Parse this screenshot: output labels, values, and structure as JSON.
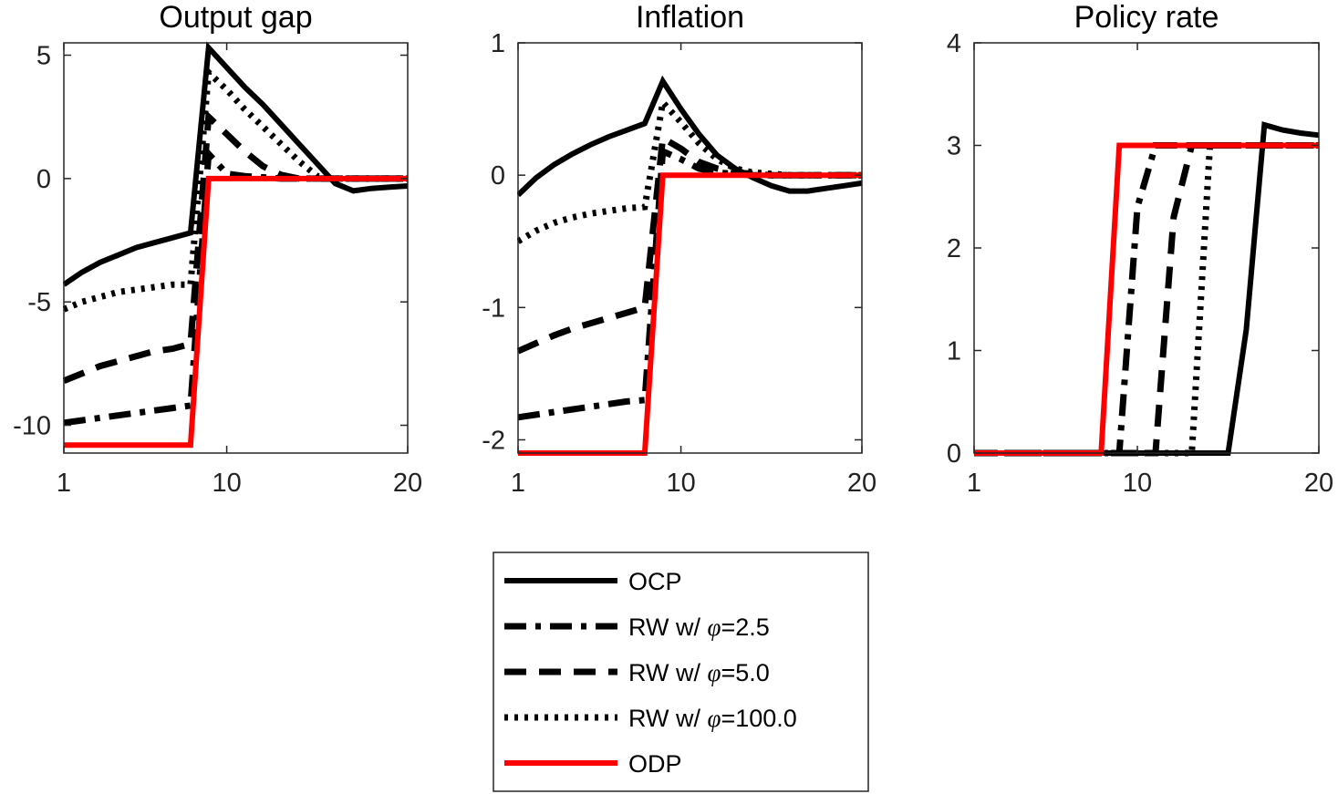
{
  "chart_data": [
    {
      "type": "line",
      "title": "Output gap",
      "xlabel": "",
      "ylabel": "",
      "xlim": [
        1,
        20
      ],
      "ylim": [
        -10.8,
        5.5
      ],
      "xticks": [
        "1",
        "10",
        "20"
      ],
      "yticks": [
        "5",
        "0",
        "-5",
        "-10"
      ],
      "grid": false,
      "x": [
        1,
        2,
        3,
        4,
        5,
        6,
        7,
        8,
        9,
        10,
        11,
        12,
        13,
        14,
        15,
        16,
        17,
        18,
        19,
        20
      ],
      "series": [
        {
          "name": "OCP",
          "values": [
            -4.3,
            -3.8,
            -3.4,
            -3.1,
            -2.8,
            -2.6,
            -2.4,
            -2.2,
            5.3,
            4.5,
            3.7,
            3.0,
            2.2,
            1.4,
            0.6,
            -0.2,
            -0.5,
            -0.4,
            -0.35,
            -0.3
          ]
        },
        {
          "name": "RW w/ φ=2.5",
          "values": [
            -9.9,
            -9.8,
            -9.7,
            -9.6,
            -9.5,
            -9.4,
            -9.3,
            -9.2,
            1.0,
            0.2,
            0.1,
            0.05,
            0.0,
            0.0,
            0.0,
            0.0,
            0.0,
            0.0,
            0.0,
            0.0
          ]
        },
        {
          "name": "RW w/ φ=5.0",
          "values": [
            -8.2,
            -7.9,
            -7.6,
            -7.4,
            -7.2,
            -7.0,
            -6.9,
            -6.7,
            2.5,
            1.8,
            1.1,
            0.5,
            0.15,
            0.0,
            0.0,
            0.0,
            0.0,
            0.0,
            0.0,
            0.0
          ]
        },
        {
          "name": "RW w/ φ=100.0",
          "values": [
            -5.3,
            -5.0,
            -4.8,
            -4.6,
            -4.5,
            -4.4,
            -4.3,
            -4.3,
            4.3,
            3.6,
            2.8,
            2.1,
            1.4,
            0.7,
            0.1,
            0.0,
            0.0,
            0.0,
            0.0,
            0.0
          ]
        },
        {
          "name": "ODP",
          "values": [
            -10.8,
            -10.8,
            -10.8,
            -10.8,
            -10.8,
            -10.8,
            -10.8,
            -10.8,
            0,
            0,
            0,
            0,
            0,
            0,
            0,
            0,
            0,
            0,
            0,
            0
          ]
        }
      ]
    },
    {
      "type": "line",
      "title": "Inflation",
      "xlabel": "",
      "ylabel": "",
      "xlim": [
        1,
        20
      ],
      "ylim": [
        -2.1,
        1
      ],
      "xticks": [
        "1",
        "10",
        "20"
      ],
      "yticks": [
        "1",
        "0",
        "-1",
        "-2"
      ],
      "grid": false,
      "x": [
        1,
        2,
        3,
        4,
        5,
        6,
        7,
        8,
        9,
        10,
        11,
        12,
        13,
        14,
        15,
        16,
        17,
        18,
        19,
        20
      ],
      "series": [
        {
          "name": "OCP",
          "values": [
            -0.15,
            -0.02,
            0.08,
            0.16,
            0.23,
            0.29,
            0.34,
            0.39,
            0.71,
            0.5,
            0.31,
            0.15,
            0.05,
            -0.02,
            -0.08,
            -0.12,
            -0.12,
            -0.1,
            -0.08,
            -0.06
          ]
        },
        {
          "name": "RW w/ φ=2.5",
          "values": [
            -1.83,
            -1.81,
            -1.79,
            -1.77,
            -1.75,
            -1.73,
            -1.71,
            -1.7,
            0.18,
            0.12,
            0.05,
            0.02,
            0.01,
            0.0,
            0.0,
            0.0,
            0.0,
            0.0,
            0.0,
            0.0
          ]
        },
        {
          "name": "RW w/ φ=5.0",
          "values": [
            -1.33,
            -1.27,
            -1.21,
            -1.16,
            -1.12,
            -1.08,
            -1.04,
            -1.0,
            0.28,
            0.2,
            0.1,
            0.05,
            0.02,
            0.01,
            0.0,
            0.0,
            0.0,
            0.0,
            0.0,
            0.0
          ]
        },
        {
          "name": "RW w/ φ=100.0",
          "values": [
            -0.5,
            -0.42,
            -0.36,
            -0.32,
            -0.29,
            -0.27,
            -0.25,
            -0.24,
            0.55,
            0.4,
            0.24,
            0.12,
            0.05,
            0.02,
            0.01,
            0.0,
            0.0,
            0.0,
            0.0,
            0.0
          ]
        },
        {
          "name": "ODP",
          "values": [
            -2.1,
            -2.1,
            -2.1,
            -2.1,
            -2.1,
            -2.1,
            -2.1,
            -2.1,
            0,
            0,
            0,
            0,
            0,
            0,
            0,
            0,
            0,
            0,
            0,
            0
          ]
        }
      ]
    },
    {
      "type": "line",
      "title": "Policy rate",
      "xlabel": "",
      "ylabel": "",
      "xlim": [
        1,
        20
      ],
      "ylim": [
        0,
        4
      ],
      "xticks": [
        "1",
        "10",
        "20"
      ],
      "yticks": [
        "4",
        "3",
        "2",
        "1",
        "0"
      ],
      "grid": false,
      "x": [
        1,
        2,
        3,
        4,
        5,
        6,
        7,
        8,
        9,
        10,
        11,
        12,
        13,
        14,
        15,
        16,
        17,
        18,
        19,
        20
      ],
      "series": [
        {
          "name": "OCP",
          "values": [
            0,
            0,
            0,
            0,
            0,
            0,
            0,
            0,
            0,
            0,
            0,
            0,
            0,
            0,
            0,
            1.2,
            3.2,
            3.15,
            3.12,
            3.1
          ]
        },
        {
          "name": "RW w/ φ=2.5",
          "values": [
            0,
            0,
            0,
            0,
            0,
            0,
            0,
            0,
            0,
            2.4,
            3.0,
            3.0,
            3.0,
            3.0,
            3.0,
            3.0,
            3.0,
            3.0,
            3.0,
            3.0
          ]
        },
        {
          "name": "RW w/ φ=5.0",
          "values": [
            0,
            0,
            0,
            0,
            0,
            0,
            0,
            0,
            0,
            0,
            0,
            2.3,
            3.0,
            3.0,
            3.0,
            3.0,
            3.0,
            3.0,
            3.0,
            3.0
          ]
        },
        {
          "name": "RW w/ φ=100.0",
          "values": [
            0,
            0,
            0,
            0,
            0,
            0,
            0,
            0,
            0,
            0,
            0,
            0,
            0,
            3.0,
            3.0,
            3.0,
            3.0,
            3.0,
            3.0,
            3.0
          ]
        },
        {
          "name": "ODP",
          "values": [
            0,
            0,
            0,
            0,
            0,
            0,
            0,
            0,
            3,
            3,
            3,
            3,
            3,
            3,
            3,
            3,
            3,
            3,
            3,
            3
          ]
        }
      ]
    }
  ],
  "legend": {
    "placement": "bottom-center",
    "items": [
      {
        "prefix": "OCP",
        "symbol": "",
        "suffix": "",
        "style": "solid",
        "color": "#000000"
      },
      {
        "prefix": "RW w/  ",
        "symbol": "φ",
        "suffix": "=2.5",
        "style": "dashdot",
        "color": "#000000"
      },
      {
        "prefix": "RW w/  ",
        "symbol": "φ",
        "suffix": "=5.0",
        "style": "dashed",
        "color": "#000000"
      },
      {
        "prefix": "RW w/  ",
        "symbol": "φ",
        "suffix": "=100.0",
        "style": "dotted",
        "color": "#000000"
      },
      {
        "prefix": "ODP",
        "symbol": "",
        "suffix": "",
        "style": "solid",
        "color": "#ff0000"
      }
    ]
  },
  "colors": {
    "black": "#000000",
    "red": "#ff0000",
    "axis": "#262626"
  }
}
